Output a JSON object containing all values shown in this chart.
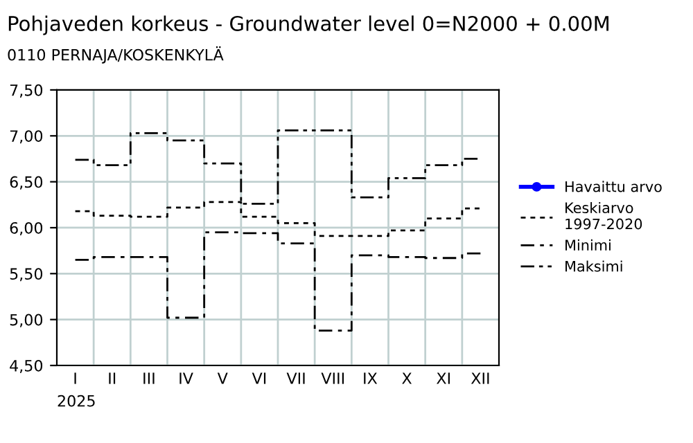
{
  "chart_data": {
    "type": "step",
    "title": "Pohjaveden korkeus - Groundwater level 0=N2000 + 0.00M",
    "subtitle": "0110 PERNAJA/KOSKENKYLÄ",
    "xlabel": "2025",
    "categories": [
      "I",
      "II",
      "III",
      "IV",
      "V",
      "VI",
      "VII",
      "VIII",
      "IX",
      "X",
      "XI",
      "XII"
    ],
    "series": [
      {
        "name": "Havaittu arvo",
        "color": "#0000ff",
        "marker": "circle",
        "line_style": "solid",
        "values": [
          null,
          null,
          null,
          null,
          null,
          null,
          null,
          null,
          null,
          null,
          null,
          null
        ]
      },
      {
        "name": "Keskiarvo\n1997-2020",
        "color": "#000000",
        "line_style": "dotted",
        "values": [
          6.18,
          6.13,
          6.12,
          6.22,
          6.28,
          6.12,
          6.05,
          5.91,
          5.91,
          5.97,
          6.1,
          6.21
        ]
      },
      {
        "name": "Minimi",
        "color": "#000000",
        "line_style": "dashdot",
        "values": [
          5.65,
          5.68,
          5.68,
          5.02,
          5.95,
          5.94,
          5.83,
          4.88,
          5.7,
          5.68,
          5.67,
          5.72
        ]
      },
      {
        "name": "Maksimi",
        "color": "#000000",
        "line_style": "dashdotdot",
        "values": [
          6.74,
          6.68,
          7.03,
          6.95,
          6.7,
          6.26,
          7.06,
          7.06,
          6.33,
          6.54,
          6.68,
          6.75
        ]
      }
    ],
    "ylim": [
      4.5,
      7.5
    ],
    "yticks": [
      {
        "value": 4.5,
        "label": "4,50"
      },
      {
        "value": 5.0,
        "label": "5,00"
      },
      {
        "value": 5.5,
        "label": "5,50"
      },
      {
        "value": 6.0,
        "label": "6,00"
      },
      {
        "value": 6.5,
        "label": "6,50"
      },
      {
        "value": 7.0,
        "label": "7,00"
      },
      {
        "value": 7.5,
        "label": "7,50"
      }
    ],
    "grid": true,
    "legend": "right"
  }
}
